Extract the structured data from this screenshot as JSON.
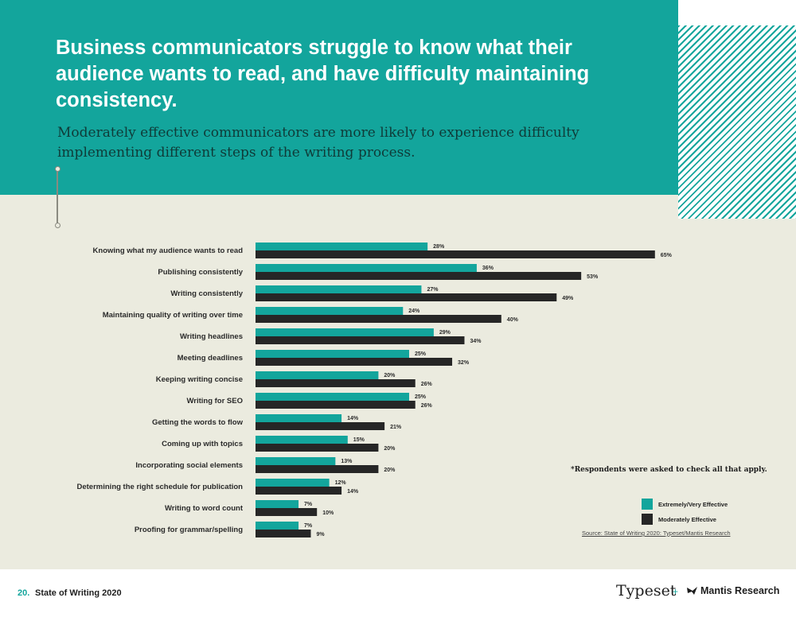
{
  "header": {
    "title": "Business communicators struggle to know what their audience wants to read, and have difficulty maintaining consistency.",
    "subtitle": "Moderately effective communicators are more likely to experience difficulty implementing different steps of the writing process."
  },
  "colors": {
    "teal": "#13a59c",
    "dark": "#262626",
    "background": "#ebebdf"
  },
  "chart_data": {
    "type": "bar",
    "orientation": "horizontal",
    "categories": [
      "Knowing what my audience wants to read",
      "Publishing consistently",
      "Writing consistently",
      "Maintaining quality of writing over time",
      "Writing headlines",
      "Meeting deadlines",
      "Keeping writing concise",
      "Writing for SEO",
      "Getting the words to flow",
      "Coming up with topics",
      "Incorporating social elements",
      "Determining the right schedule for publication",
      "Writing to word count",
      "Proofing for grammar/spelling"
    ],
    "series": [
      {
        "name": "Extremely/Very Effective",
        "color": "#13a59c",
        "values": [
          28,
          36,
          27,
          24,
          29,
          25,
          20,
          25,
          14,
          15,
          13,
          12,
          7,
          7
        ]
      },
      {
        "name": "Moderately Effective",
        "color": "#262626",
        "values": [
          65,
          53,
          49,
          40,
          34,
          32,
          26,
          26,
          21,
          20,
          20,
          14,
          10,
          9
        ]
      }
    ],
    "value_suffix": "%",
    "xlim": [
      0,
      65
    ],
    "grid": false,
    "legend": "bottom-right"
  },
  "note": "*Respondents were asked to check all that apply.",
  "source": "Source: State of Writing 2020: Typeset/Mantis Research",
  "footer": {
    "page_number": "20.",
    "doc_title": "State of Writing 2020",
    "brand_primary": "Typeset",
    "plus": "+",
    "brand_secondary": "Mantis Research"
  }
}
